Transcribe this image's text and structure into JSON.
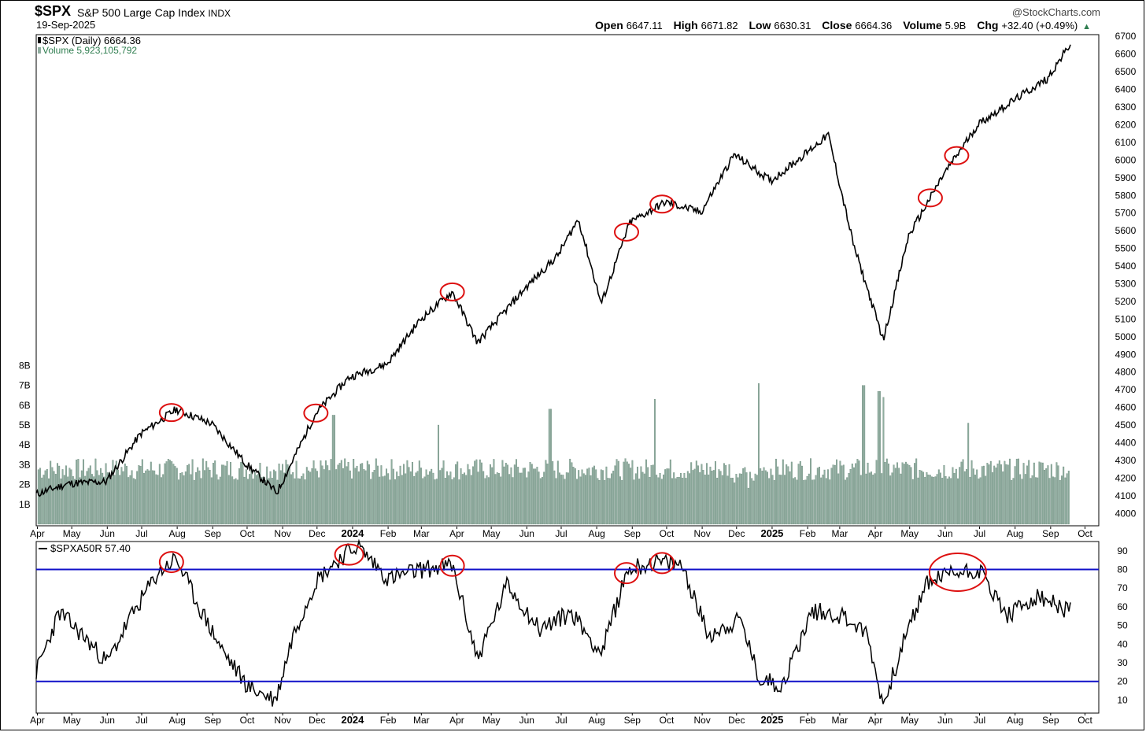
{
  "header": {
    "symbol": "$SPX",
    "name": "S&P 500 Large Cap Index",
    "exchange": "INDX",
    "date": "19-Sep-2025",
    "watermark": "@StockCharts.com",
    "open_label": "Open",
    "open_value": "6647.11",
    "high_label": "High",
    "high_value": "6671.82",
    "low_label": "Low",
    "low_value": "6630.31",
    "close_label": "Close",
    "close_value": "6664.36",
    "volume_label": "Volume",
    "volume_value": "5.9B",
    "chg_label": "Chg",
    "chg_value": "+32.40 (+0.49%)",
    "chg_arrow": "▲"
  },
  "colors": {
    "price": "#000000",
    "volume_bar": "#8fad9f",
    "volume_bar_edge": "#5f7f70",
    "volume_text": "#2e7d4f",
    "band_lines": "#1010c8",
    "highlight_circles": "#dd1010",
    "chg_arrow": "#2e7d4f"
  },
  "chart_data": [
    {
      "type": "line",
      "title": "S&P 500 Large Cap Index",
      "legend": [
        "$SPX (Daily) 6664.36",
        "Volume 5,923,105,792"
      ],
      "series": [
        {
          "name": "$SPX (Daily)",
          "x": [
            "2023-03-31",
            "2023-04-28",
            "2023-05-31",
            "2023-06-30",
            "2023-07-31",
            "2023-08-31",
            "2023-09-29",
            "2023-10-27",
            "2023-11-30",
            "2023-12-29",
            "2024-01-31",
            "2024-02-29",
            "2024-03-28",
            "2024-04-19",
            "2024-05-31",
            "2024-06-28",
            "2024-07-16",
            "2024-08-05",
            "2024-08-30",
            "2024-09-30",
            "2024-10-31",
            "2024-11-29",
            "2024-12-31",
            "2025-01-31",
            "2025-02-19",
            "2025-03-13",
            "2025-04-08",
            "2025-04-30",
            "2025-05-30",
            "2025-06-30",
            "2025-07-31",
            "2025-08-29",
            "2025-09-19"
          ],
          "values": [
            4109,
            4169,
            4180,
            4450,
            4589,
            4508,
            4288,
            4117,
            4568,
            4770,
            4846,
            5096,
            5254,
            4967,
            5278,
            5460,
            5667,
            5186,
            5648,
            5762,
            5705,
            6032,
            5882,
            6041,
            6144,
            5521,
            4982,
            5569,
            5912,
            6205,
            6339,
            6460,
            6664
          ]
        }
      ],
      "volume": {
        "name": "Volume",
        "unit": "B",
        "typical": 2.6,
        "x": [
          "2023-12-15",
          "2024-03-15",
          "2024-06-21",
          "2024-09-20",
          "2024-12-20",
          "2025-03-21",
          "2025-04-04",
          "2025-04-07",
          "2025-06-20",
          "2025-09-19"
        ],
        "values": [
          5.5,
          5.0,
          5.8,
          6.3,
          7.1,
          7.0,
          6.7,
          6.4,
          5.1,
          5.9
        ]
      },
      "ylim": [
        3930,
        6710
      ],
      "yticks": [
        4000,
        4100,
        4200,
        4300,
        4400,
        4500,
        4600,
        4700,
        4800,
        4900,
        5000,
        5100,
        5200,
        5300,
        5400,
        5500,
        5600,
        5700,
        5800,
        5900,
        6000,
        6100,
        6200,
        6300,
        6400,
        6500,
        6600,
        6700
      ],
      "volume_ticks": [
        "1B",
        "2B",
        "3B",
        "4B",
        "5B",
        "6B",
        "7B",
        "8B"
      ],
      "xticks": [
        "Apr",
        "May",
        "Jun",
        "Jul",
        "Aug",
        "Sep",
        "Oct",
        "Nov",
        "Dec",
        "2024",
        "Feb",
        "Mar",
        "Apr",
        "May",
        "Jun",
        "Jul",
        "Aug",
        "Sep",
        "Oct",
        "Nov",
        "Dec",
        "2025",
        "Feb",
        "Mar",
        "Apr",
        "May",
        "Jun",
        "Jul",
        "Aug",
        "Sep",
        "Oct"
      ],
      "highlighted_dates": [
        "2023-07-27",
        "2023-11-30",
        "2024-03-28",
        "2024-08-27",
        "2024-09-27",
        "2025-05-19",
        "2025-06-11"
      ]
    },
    {
      "type": "line",
      "legend": [
        "$SPXA50R 57.40"
      ],
      "series": [
        {
          "name": "$SPXA50R",
          "x": [
            "2023-03-31",
            "2023-04-20",
            "2023-05-10",
            "2023-06-01",
            "2023-06-20",
            "2023-07-15",
            "2023-07-31",
            "2023-08-20",
            "2023-09-10",
            "2023-10-02",
            "2023-10-26",
            "2023-11-10",
            "2023-11-30",
            "2023-12-15",
            "2024-01-05",
            "2024-02-01",
            "2024-03-01",
            "2024-03-28",
            "2024-04-19",
            "2024-05-15",
            "2024-06-12",
            "2024-07-10",
            "2024-08-05",
            "2024-08-28",
            "2024-09-20",
            "2024-10-15",
            "2024-11-06",
            "2024-12-05",
            "2024-12-20",
            "2025-01-10",
            "2025-02-05",
            "2025-03-05",
            "2025-03-25",
            "2025-04-08",
            "2025-04-25",
            "2025-05-16",
            "2025-06-05",
            "2025-07-01",
            "2025-07-25",
            "2025-08-20",
            "2025-09-19"
          ],
          "values": [
            25,
            57,
            45,
            30,
            53,
            78,
            86,
            60,
            36,
            17,
            10,
            45,
            74,
            83,
            93,
            75,
            80,
            82,
            32,
            72,
            48,
            57,
            35,
            80,
            84,
            82,
            45,
            53,
            22,
            18,
            58,
            55,
            45,
            7,
            40,
            73,
            78,
            80,
            55,
            65,
            57.4
          ]
        }
      ],
      "ylim": [
        3,
        95
      ],
      "yticks": [
        10,
        20,
        30,
        40,
        50,
        60,
        70,
        80,
        90
      ],
      "bands": [
        20,
        80
      ],
      "xticks": [
        "Apr",
        "May",
        "Jun",
        "Jul",
        "Aug",
        "Sep",
        "Oct",
        "Nov",
        "Dec",
        "2024",
        "Feb",
        "Mar",
        "Apr",
        "May",
        "Jun",
        "Jul",
        "Aug",
        "Sep",
        "Oct",
        "Nov",
        "Dec",
        "2025",
        "Feb",
        "Mar",
        "Apr",
        "May",
        "Jun",
        "Jul",
        "Aug",
        "Sep",
        "Oct"
      ],
      "highlighted_dates": [
        "2023-07-27",
        "2023-12-29",
        "2024-03-28",
        "2024-08-27",
        "2024-09-27",
        "2025-06-12"
      ]
    }
  ]
}
